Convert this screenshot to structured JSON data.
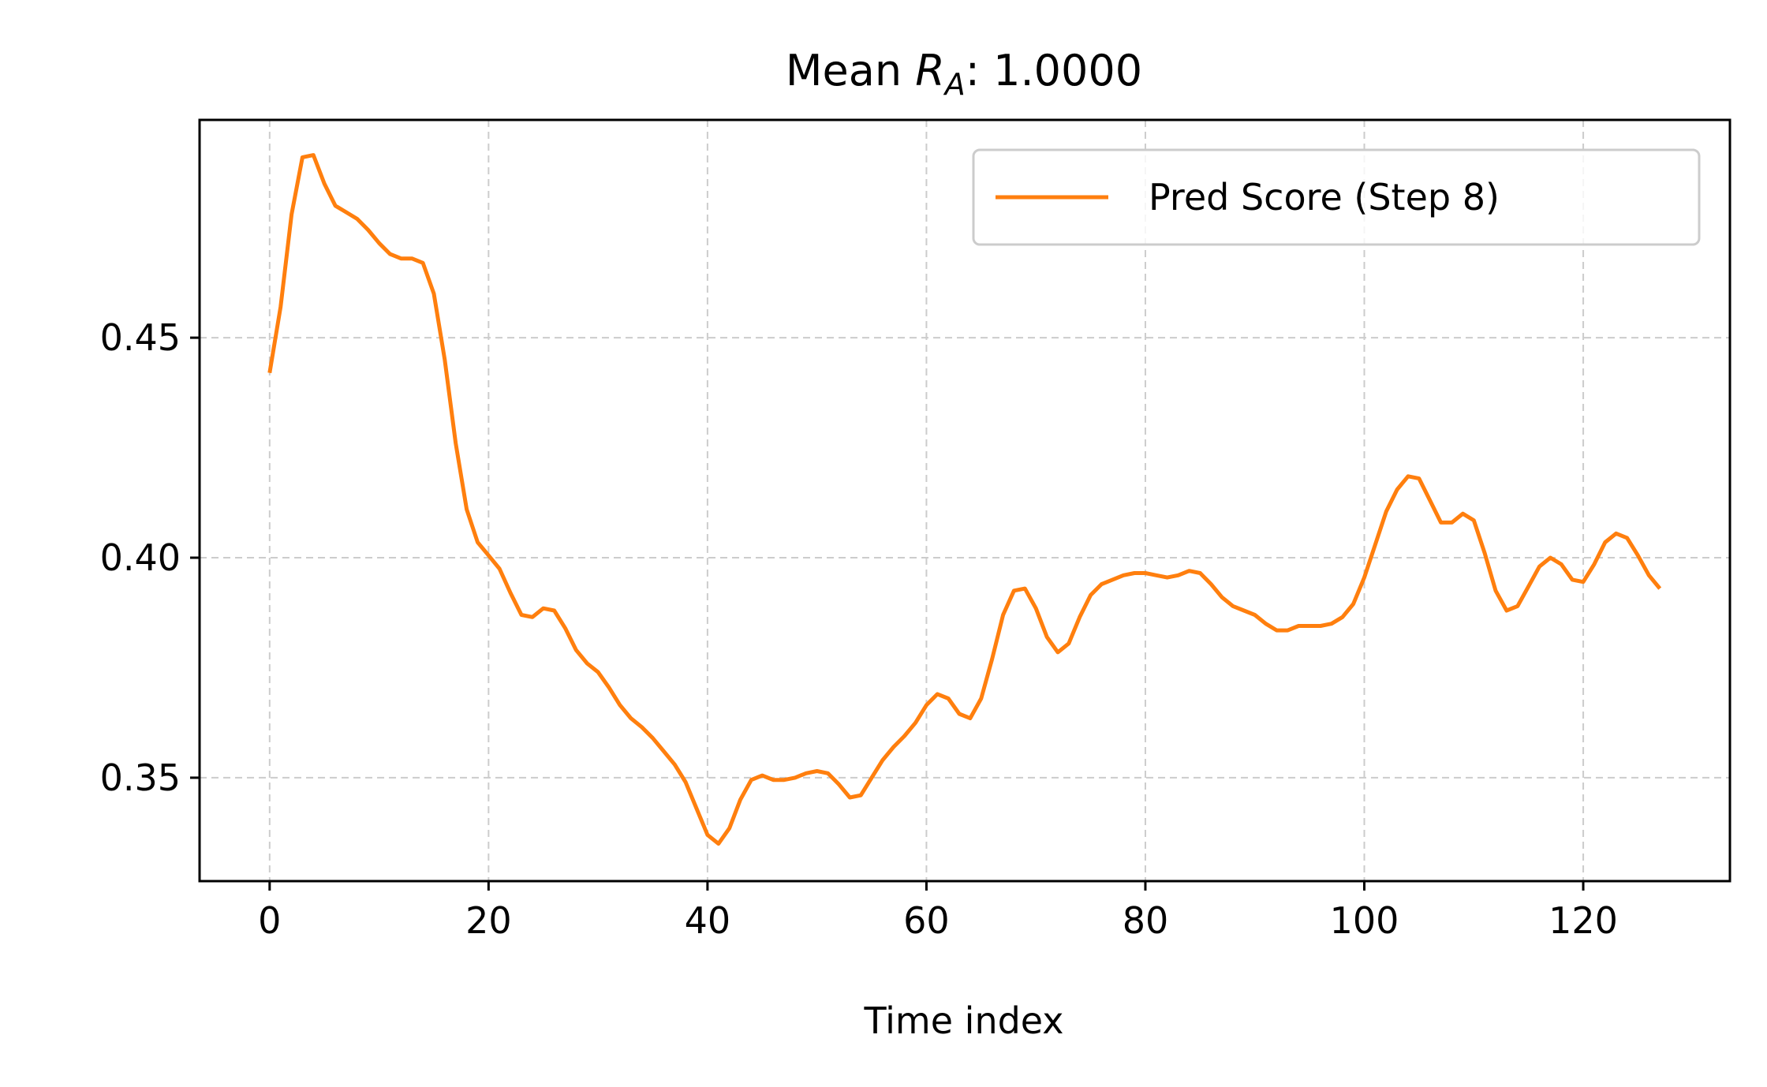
{
  "chart_data": {
    "type": "line",
    "title": {
      "prefix": "Mean ",
      "math_base": "R",
      "math_sub": "A",
      "suffix": ": 1.0000"
    },
    "xlabel": "Time index",
    "ylabel": "",
    "xlim": [
      -6.4,
      133.4
    ],
    "ylim": [
      0.3265,
      0.4995
    ],
    "xticks": [
      0,
      20,
      40,
      60,
      80,
      100,
      120
    ],
    "xtick_labels": [
      "0",
      "20",
      "40",
      "60",
      "80",
      "100",
      "120"
    ],
    "yticks": [
      0.35,
      0.4,
      0.45
    ],
    "ytick_labels": [
      "0.35",
      "0.40",
      "0.45"
    ],
    "grid": true,
    "legend_position": "upper right",
    "series": [
      {
        "name": "Pred Score (Step 8)",
        "color": "#ff7f0e",
        "x": [
          0,
          1,
          2,
          3,
          4,
          5,
          6,
          7,
          8,
          9,
          10,
          11,
          12,
          13,
          14,
          15,
          16,
          17,
          18,
          19,
          20,
          21,
          22,
          23,
          24,
          25,
          26,
          27,
          28,
          29,
          30,
          31,
          32,
          33,
          34,
          35,
          36,
          37,
          38,
          39,
          40,
          41,
          42,
          43,
          44,
          45,
          46,
          47,
          48,
          49,
          50,
          51,
          52,
          53,
          54,
          55,
          56,
          57,
          58,
          59,
          60,
          61,
          62,
          63,
          64,
          65,
          66,
          67,
          68,
          69,
          70,
          71,
          72,
          73,
          74,
          75,
          76,
          77,
          78,
          79,
          80,
          81,
          82,
          83,
          84,
          85,
          86,
          87,
          88,
          89,
          90,
          91,
          92,
          93,
          94,
          95,
          96,
          97,
          98,
          99,
          100,
          101,
          102,
          103,
          104,
          105,
          106,
          107,
          108,
          109,
          110,
          111,
          112,
          113,
          114,
          115,
          116,
          117,
          118,
          119,
          120,
          121,
          122,
          123,
          124,
          125,
          126,
          127
        ],
        "y": [
          0.442,
          0.457,
          0.478,
          0.491,
          0.4915,
          0.485,
          0.48,
          0.4785,
          0.477,
          0.4745,
          0.4715,
          0.469,
          0.468,
          0.468,
          0.467,
          0.46,
          0.445,
          0.426,
          0.411,
          0.4035,
          0.4005,
          0.3975,
          0.392,
          0.387,
          0.3865,
          0.3885,
          0.388,
          0.384,
          0.379,
          0.376,
          0.374,
          0.3705,
          0.3665,
          0.3635,
          0.3615,
          0.359,
          0.356,
          0.353,
          0.349,
          0.343,
          0.337,
          0.335,
          0.3385,
          0.345,
          0.3495,
          0.3505,
          0.3495,
          0.3495,
          0.35,
          0.351,
          0.3515,
          0.351,
          0.3485,
          0.3455,
          0.346,
          0.35,
          0.354,
          0.357,
          0.3595,
          0.3625,
          0.3665,
          0.369,
          0.368,
          0.3645,
          0.3635,
          0.368,
          0.377,
          0.387,
          0.3925,
          0.393,
          0.3885,
          0.382,
          0.3785,
          0.3805,
          0.3865,
          0.3915,
          0.394,
          0.395,
          0.396,
          0.3965,
          0.3965,
          0.396,
          0.3955,
          0.396,
          0.397,
          0.3965,
          0.394,
          0.391,
          0.389,
          0.388,
          0.387,
          0.385,
          0.3835,
          0.3835,
          0.3845,
          0.3845,
          0.3845,
          0.385,
          0.3865,
          0.3895,
          0.3955,
          0.403,
          0.4105,
          0.4155,
          0.4185,
          0.418,
          0.413,
          0.408,
          0.408,
          0.41,
          0.4085,
          0.401,
          0.3925,
          0.388,
          0.389,
          0.3935,
          0.398,
          0.4,
          0.3985,
          0.395,
          0.3945,
          0.3985,
          0.4035,
          0.4055,
          0.4045,
          0.4005,
          0.396,
          0.393
        ]
      }
    ]
  }
}
